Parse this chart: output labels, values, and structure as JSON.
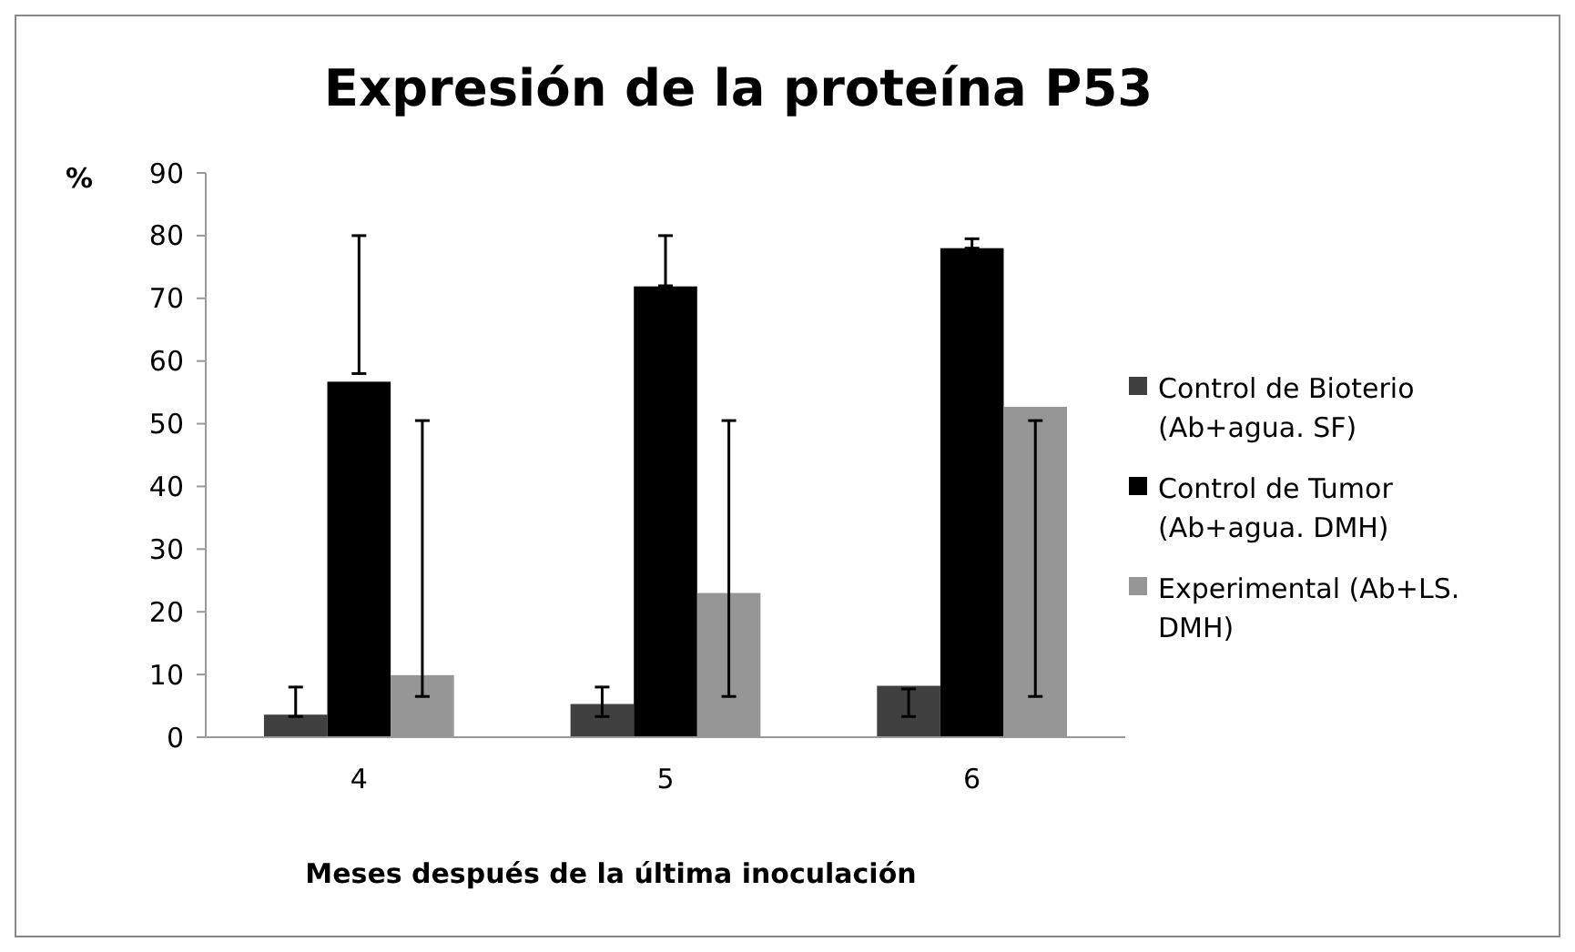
{
  "chart_data": {
    "type": "bar",
    "title": "Expresión de la proteína P53",
    "xlabel": "Meses después de la última inoculación",
    "ylabel": "%",
    "categories": [
      "4",
      "5",
      "6"
    ],
    "series": [
      {
        "name": "Control de Bioterio (Ab+agua. SF)",
        "color": "#404040",
        "values": [
          3.6,
          5.3,
          8.2
        ],
        "errors": [
          [
            3.3,
            8
          ],
          [
            3.3,
            8
          ],
          [
            3.3,
            7.7
          ]
        ]
      },
      {
        "name": "Control de Tumor (Ab+agua. DMH)",
        "color": "#000000",
        "values": [
          56.7,
          71.9,
          78
        ],
        "errors": [
          [
            58,
            80
          ],
          [
            72,
            80
          ],
          [
            78,
            79.5
          ]
        ]
      },
      {
        "name": "Experimental (Ab+LS. DMH)",
        "color": "#969696",
        "values": [
          9.9,
          23,
          52.7
        ],
        "errors": [
          [
            6.5,
            50.5
          ],
          [
            6.5,
            50.5
          ],
          [
            6.5,
            50.5
          ]
        ]
      }
    ],
    "ylim": [
      0,
      90
    ],
    "yticks": [
      0,
      10,
      20,
      30,
      40,
      50,
      60,
      70,
      80,
      90
    ],
    "grid": false,
    "legend": "right"
  }
}
